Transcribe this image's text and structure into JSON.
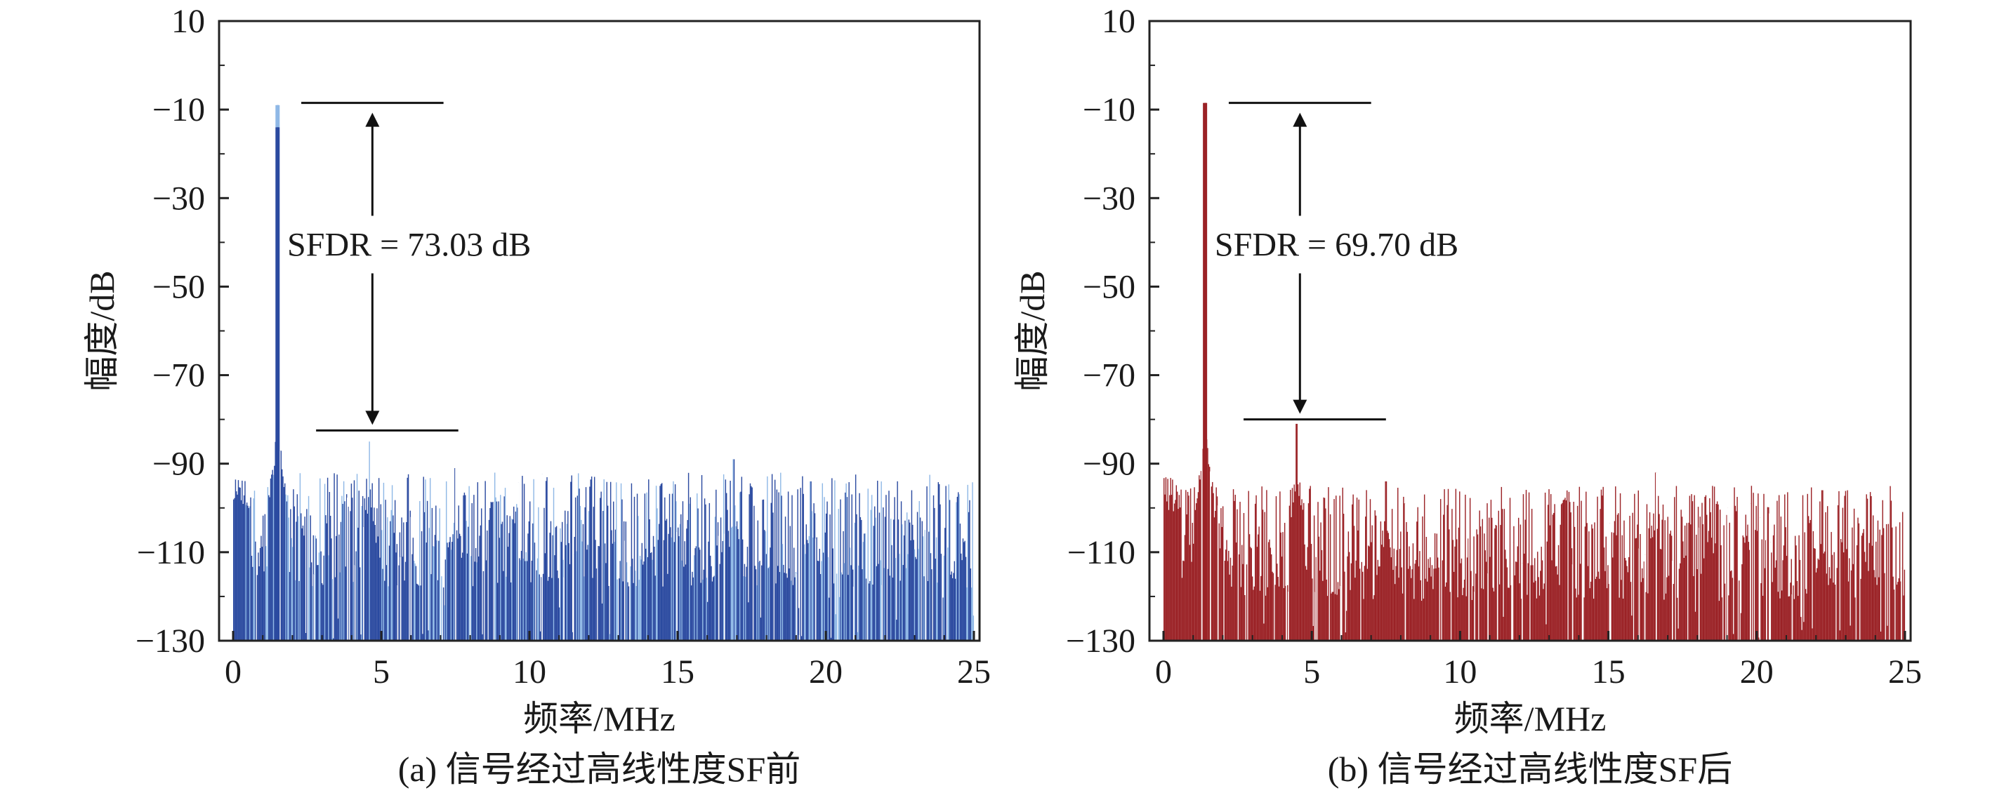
{
  "chart_data": [
    {
      "type": "bar",
      "panel": "a",
      "caption": "(a) 信号经过高线性度SF前",
      "xlabel": "频率/MHz",
      "ylabel": "幅度/dB",
      "xlim": [
        0,
        25
      ],
      "ylim": [
        -130,
        10
      ],
      "xticks": [
        0,
        5,
        10,
        15,
        20,
        25
      ],
      "yticks": [
        10,
        -10,
        -30,
        -50,
        -70,
        -90,
        -110,
        -130
      ],
      "ytick_labels": [
        "10",
        "−10",
        "−30",
        "−50",
        "−70",
        "−90",
        "−110",
        "−130"
      ],
      "colors": {
        "primary": "#2b4aa0",
        "secondary": "#8fb8e6"
      },
      "noise_floor_db": -105,
      "peaks": [
        {
          "freq_mhz": 1.5,
          "value_db": -9,
          "label": "fundamental"
        },
        {
          "freq_mhz": 4.6,
          "value_db": -85
        },
        {
          "freq_mhz": 7.5,
          "value_db": -91
        },
        {
          "freq_mhz": 16.9,
          "value_db": -89
        },
        {
          "freq_mhz": 19.5,
          "value_db": -94
        },
        {
          "freq_mhz": 22.9,
          "value_db": -96
        }
      ],
      "annotation": {
        "text": "SFDR = 73.03 dB",
        "top_db": -8.5,
        "bottom_db": -82.5,
        "top_line_x": [
          2.3,
          7.1
        ],
        "bottom_line_x": [
          2.8,
          7.6
        ],
        "arrow_x": 4.7
      }
    },
    {
      "type": "bar",
      "panel": "b",
      "caption": "(b) 信号经过高线性度SF后",
      "xlabel": "频率/MHz",
      "ylabel": "幅度/dB",
      "xlim": [
        0,
        25
      ],
      "ylim": [
        -130,
        10
      ],
      "xticks": [
        0,
        5,
        10,
        15,
        20,
        25
      ],
      "yticks": [
        10,
        -10,
        -30,
        -50,
        -70,
        -90,
        -110,
        -130
      ],
      "ytick_labels": [
        "10",
        "−10",
        "−30",
        "−50",
        "−70",
        "−90",
        "−110",
        "−130"
      ],
      "colors": {
        "primary": "#9b2226",
        "secondary": "#9b2226"
      },
      "noise_floor_db": -108,
      "peaks": [
        {
          "freq_mhz": 1.4,
          "value_db": -8.5,
          "label": "fundamental"
        },
        {
          "freq_mhz": 4.5,
          "value_db": -81
        },
        {
          "freq_mhz": 7.5,
          "value_db": -94
        },
        {
          "freq_mhz": 16.6,
          "value_db": -92
        },
        {
          "freq_mhz": 22.2,
          "value_db": -96
        }
      ],
      "annotation": {
        "text": "SFDR = 69.70 dB",
        "top_db": -8.5,
        "bottom_db": -80,
        "top_line_x": [
          2.2,
          7.0
        ],
        "bottom_line_x": [
          2.7,
          7.5
        ],
        "arrow_x": 4.6
      }
    }
  ]
}
